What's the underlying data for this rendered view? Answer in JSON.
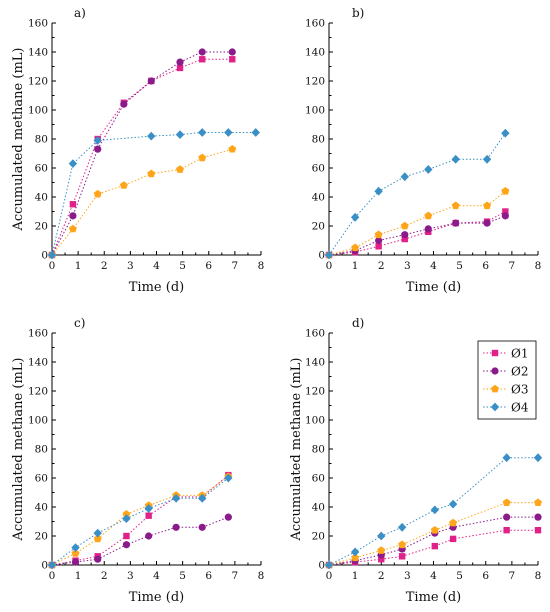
{
  "series_names": [
    "Ø1",
    "Ø2",
    "Ø3",
    "Ø4"
  ],
  "colors": {
    "s1": "#e0218a",
    "s2": "#8b1a8b",
    "s3": "#ffa51a",
    "s4": "#3a8fc7",
    "grid": "#c8c8c8"
  },
  "markers": [
    "square",
    "circle",
    "pentagon",
    "diamond"
  ],
  "chart_data": [
    {
      "type": "line",
      "panel_label": "a)",
      "xlabel": "Time (d)",
      "ylabel": "Accumulated methane (mL)",
      "xlim": [
        0,
        8
      ],
      "ylim": [
        0,
        160
      ],
      "xticks": [
        "0",
        "1",
        "2",
        "3",
        "4",
        "5",
        "6",
        "7",
        "8"
      ],
      "yticks": [
        "0",
        "20",
        "40",
        "60",
        "80",
        "100",
        "120",
        "140",
        "160"
      ],
      "grid": true,
      "legend": false,
      "series": [
        {
          "name": "Ø1",
          "x": [
            0,
            0.8,
            1.75,
            2.75,
            3.8,
            4.9,
            5.75,
            6.9
          ],
          "y": [
            0,
            35,
            80,
            105,
            120,
            129,
            135,
            135
          ]
        },
        {
          "name": "Ø2",
          "x": [
            0,
            0.8,
            1.75,
            2.75,
            3.8,
            4.9,
            5.75,
            6.9
          ],
          "y": [
            0,
            27,
            73,
            104,
            120,
            133,
            140,
            140
          ]
        },
        {
          "name": "Ø3",
          "x": [
            0,
            0.8,
            1.75,
            2.75,
            3.8,
            4.9,
            5.75,
            6.9
          ],
          "y": [
            0,
            18,
            42,
            48,
            56,
            59,
            67,
            73
          ]
        },
        {
          "name": "Ø4",
          "x": [
            0,
            0.8,
            1.75,
            3.8,
            4.9,
            5.75,
            6.75,
            7.8
          ],
          "y": [
            0,
            63,
            79,
            82,
            83,
            84.5,
            84.5,
            84.5
          ]
        }
      ]
    },
    {
      "type": "line",
      "panel_label": "b)",
      "xlabel": "Time (d)",
      "ylabel": "",
      "xlim": [
        0,
        8
      ],
      "ylim": [
        0,
        160
      ],
      "xticks": [
        "0",
        "1",
        "2",
        "3",
        "4",
        "5",
        "6",
        "7",
        "8"
      ],
      "yticks": [
        "0",
        "20",
        "40",
        "60",
        "80",
        "100",
        "120",
        "140",
        "160"
      ],
      "grid": true,
      "legend": false,
      "series": [
        {
          "name": "Ø1",
          "x": [
            0,
            1,
            1.9,
            2.9,
            3.8,
            4.85,
            6.05,
            6.75
          ],
          "y": [
            0,
            2,
            6,
            11,
            16,
            22,
            23,
            30
          ]
        },
        {
          "name": "Ø2",
          "x": [
            0,
            1,
            1.9,
            2.9,
            3.8,
            4.85,
            6.05,
            6.75
          ],
          "y": [
            0,
            3,
            10,
            14,
            18,
            22,
            22,
            27
          ]
        },
        {
          "name": "Ø3",
          "x": [
            0,
            1,
            1.9,
            2.9,
            3.8,
            4.85,
            6.05,
            6.75
          ],
          "y": [
            0,
            5,
            14,
            20,
            27,
            34,
            34,
            44
          ]
        },
        {
          "name": "Ø4",
          "x": [
            0,
            1,
            1.9,
            2.9,
            3.8,
            4.85,
            6.05,
            6.75
          ],
          "y": [
            0,
            26,
            44,
            54,
            59,
            66,
            66,
            84
          ]
        }
      ]
    },
    {
      "type": "line",
      "panel_label": "c)",
      "xlabel": "Time (d)",
      "ylabel": "Accumulated methane (mL)",
      "xlim": [
        0,
        8
      ],
      "ylim": [
        0,
        160
      ],
      "xticks": [
        "0",
        "1",
        "2",
        "3",
        "4",
        "5",
        "6",
        "7",
        "8"
      ],
      "yticks": [
        "0",
        "20",
        "40",
        "60",
        "80",
        "100",
        "120",
        "140",
        "160"
      ],
      "grid": true,
      "legend": false,
      "series": [
        {
          "name": "Ø1",
          "x": [
            0,
            0.9,
            1.75,
            2.85,
            3.7,
            4.75,
            5.75,
            6.75
          ],
          "y": [
            0,
            3,
            6,
            20,
            34,
            47,
            47,
            62
          ]
        },
        {
          "name": "Ø2",
          "x": [
            0,
            0.9,
            1.75,
            2.85,
            3.7,
            4.75,
            5.75,
            6.75
          ],
          "y": [
            0,
            2,
            4,
            14,
            20,
            26,
            26,
            33
          ]
        },
        {
          "name": "Ø3",
          "x": [
            0,
            0.9,
            1.75,
            2.85,
            3.7,
            4.75,
            5.75,
            6.75
          ],
          "y": [
            0,
            8,
            18,
            35,
            41,
            48,
            48,
            61
          ]
        },
        {
          "name": "Ø4",
          "x": [
            0,
            0.9,
            1.75,
            2.85,
            3.7,
            4.75,
            5.75,
            6.75
          ],
          "y": [
            0,
            12,
            22,
            32,
            39,
            46,
            46,
            60
          ]
        }
      ]
    },
    {
      "type": "line",
      "panel_label": "d)",
      "xlabel": "Time (d)",
      "ylabel": "Accumulated methane (mL)",
      "xlim": [
        0,
        8
      ],
      "ylim": [
        0,
        160
      ],
      "xticks": [
        "0",
        "1",
        "2",
        "3",
        "4",
        "5",
        "6",
        "7",
        "8"
      ],
      "yticks": [
        "0",
        "20",
        "40",
        "60",
        "80",
        "100",
        "120",
        "140",
        "160"
      ],
      "grid": true,
      "legend": true,
      "legend_position": "top-right",
      "series": [
        {
          "name": "Ø1",
          "x": [
            0,
            1,
            2,
            2.8,
            4.05,
            4.75,
            6.8,
            8
          ],
          "y": [
            0,
            2,
            4,
            6,
            13,
            18,
            24,
            24
          ]
        },
        {
          "name": "Ø2",
          "x": [
            0,
            1,
            2,
            2.8,
            4.05,
            4.75,
            6.8,
            8
          ],
          "y": [
            0,
            3,
            7,
            11,
            22,
            26,
            33,
            33
          ]
        },
        {
          "name": "Ø3",
          "x": [
            0,
            1,
            2,
            2.8,
            4.05,
            4.75,
            6.8,
            8
          ],
          "y": [
            0,
            5,
            10,
            14,
            24,
            29,
            43,
            43
          ]
        },
        {
          "name": "Ø4",
          "x": [
            0,
            1,
            2,
            2.8,
            4.05,
            4.75,
            6.8,
            8
          ],
          "y": [
            0,
            9,
            20,
            26,
            38,
            42,
            74,
            74
          ]
        }
      ]
    }
  ]
}
